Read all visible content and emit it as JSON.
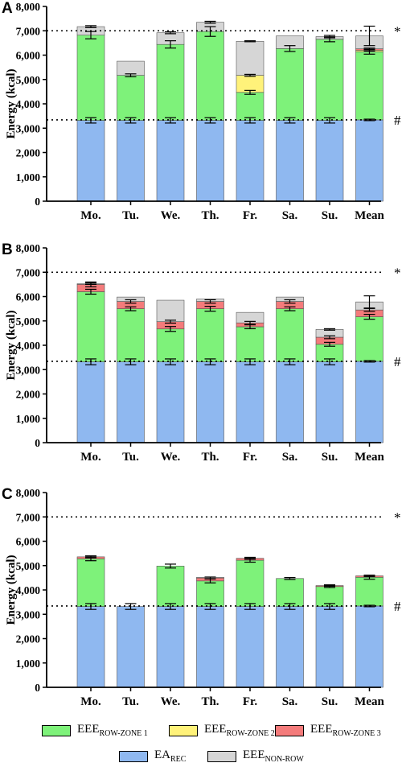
{
  "y_axis_label": "Energy (kcal)",
  "legend": [
    {
      "key": "zone1",
      "main": "EEE",
      "sub": "ROW-ZONE 1",
      "color": "#7ef27a"
    },
    {
      "key": "zone2",
      "main": "EEE",
      "sub": "ROW-ZONE 2",
      "color": "#fff27a"
    },
    {
      "key": "zone3",
      "main": "EEE",
      "sub": "ROW-ZONE 3",
      "color": "#f47b7b"
    },
    {
      "key": "ea",
      "main": "EA",
      "sub": "REC",
      "color": "#8fb8f0"
    },
    {
      "key": "nonrow",
      "main": "EEE",
      "sub": "NON-ROW",
      "color": "#d6d6d6"
    }
  ],
  "chart_data": [
    {
      "panel": "A",
      "type": "bar",
      "stacked": true,
      "categories": [
        "Mo.",
        "Tu.",
        "We.",
        "Th.",
        "Fr.",
        "Sa.",
        "Su.",
        "Mean"
      ],
      "ylim": [
        0,
        8000
      ],
      "yticks": [
        "0",
        "1,000",
        "2,000",
        "3,000",
        "4,000",
        "5,000",
        "6,000",
        "7,000",
        "8,000"
      ],
      "reference_lines": [
        {
          "value": 7000,
          "label": "*"
        },
        {
          "value": 3340,
          "label": "#"
        }
      ],
      "series": [
        {
          "name": "EA_REC",
          "key": "ea",
          "values": [
            3320,
            3320,
            3320,
            3320,
            3320,
            3320,
            3320,
            3340
          ]
        },
        {
          "name": "EEE_ROW-ZONE 1",
          "key": "zone1",
          "values": [
            3500,
            1850,
            3120,
            3650,
            1150,
            2950,
            3330,
            2800
          ]
        },
        {
          "name": "EEE_ROW-ZONE 2",
          "key": "zone2",
          "values": [
            0,
            0,
            0,
            0,
            700,
            0,
            0,
            60
          ]
        },
        {
          "name": "EEE_ROW-ZONE 3",
          "key": "zone3",
          "values": [
            0,
            0,
            0,
            0,
            0,
            0,
            0,
            60
          ]
        },
        {
          "name": "EEE_NON-ROW",
          "key": "nonrow",
          "values": [
            350,
            580,
            480,
            380,
            1400,
            520,
            110,
            530
          ]
        }
      ],
      "error_bars": {
        "ea": [
          110,
          110,
          110,
          110,
          110,
          110,
          110,
          30
        ],
        "zone1": [
          150,
          60,
          150,
          200,
          80,
          120,
          100,
          100
        ],
        "zone2": [
          0,
          0,
          0,
          0,
          40,
          0,
          0,
          30
        ],
        "zone3": [
          0,
          0,
          0,
          0,
          0,
          0,
          0,
          30
        ],
        "nonrow": [
          40,
          0,
          40,
          40,
          20,
          0,
          50,
          400
        ]
      }
    },
    {
      "panel": "B",
      "type": "bar",
      "stacked": true,
      "categories": [
        "Mo.",
        "Tu.",
        "We.",
        "Th.",
        "Fr.",
        "Sa.",
        "Su.",
        "Mean"
      ],
      "ylim": [
        0,
        8000
      ],
      "yticks": [
        "0",
        "1,000",
        "2,000",
        "3,000",
        "4,000",
        "5,000",
        "6,000",
        "7,000",
        "8,000"
      ],
      "reference_lines": [
        {
          "value": 7000,
          "label": "*"
        },
        {
          "value": 3340,
          "label": "#"
        }
      ],
      "series": [
        {
          "name": "EA_REC",
          "key": "ea",
          "values": [
            3320,
            3320,
            3320,
            3320,
            3320,
            3320,
            3320,
            3340
          ]
        },
        {
          "name": "EEE_ROW-ZONE 1",
          "key": "zone1",
          "values": [
            2880,
            2180,
            1350,
            2180,
            1440,
            2180,
            720,
            1830
          ]
        },
        {
          "name": "EEE_ROW-ZONE 2",
          "key": "zone2",
          "values": [
            0,
            0,
            0,
            0,
            0,
            0,
            0,
            0
          ]
        },
        {
          "name": "EEE_ROW-ZONE 3",
          "key": "zone3",
          "values": [
            300,
            300,
            300,
            300,
            160,
            300,
            290,
            280
          ]
        },
        {
          "name": "EEE_NON-ROW",
          "key": "nonrow",
          "values": [
            30,
            180,
            880,
            100,
            430,
            180,
            320,
            330
          ]
        }
      ],
      "error_bars": {
        "ea": [
          120,
          120,
          120,
          120,
          120,
          120,
          120,
          30
        ],
        "zone1": [
          100,
          80,
          100,
          100,
          80,
          80,
          80,
          100
        ],
        "zone2": [
          0,
          0,
          0,
          0,
          0,
          0,
          0,
          0
        ],
        "zone3": [
          100,
          70,
          60,
          70,
          60,
          70,
          60,
          60
        ],
        "nonrow": [
          30,
          0,
          0,
          0,
          0,
          0,
          30,
          250
        ]
      }
    },
    {
      "panel": "C",
      "type": "bar",
      "stacked": true,
      "categories": [
        "Mo.",
        "Tu.",
        "We.",
        "Th.",
        "Fr.",
        "Sa.",
        "Su.",
        "Mean"
      ],
      "ylim": [
        0,
        8000
      ],
      "yticks": [
        "0",
        "1,000",
        "2,000",
        "3,000",
        "4,000",
        "5,000",
        "6,000",
        "7,000",
        "8,000"
      ],
      "reference_lines": [
        {
          "value": 7000,
          "label": "*"
        },
        {
          "value": 3340,
          "label": "#"
        }
      ],
      "series": [
        {
          "name": "EA_REC",
          "key": "ea",
          "values": [
            3320,
            3320,
            3320,
            3320,
            3320,
            3320,
            3320,
            3340
          ]
        },
        {
          "name": "EEE_ROW-ZONE 1",
          "key": "zone1",
          "values": [
            1960,
            0,
            1660,
            1050,
            1900,
            1150,
            820,
            1180
          ]
        },
        {
          "name": "EEE_ROW-ZONE 2",
          "key": "zone2",
          "values": [
            0,
            0,
            0,
            0,
            0,
            0,
            0,
            0
          ]
        },
        {
          "name": "EEE_ROW-ZONE 3",
          "key": "zone3",
          "values": [
            80,
            0,
            0,
            120,
            80,
            0,
            40,
            60
          ]
        },
        {
          "name": "EEE_NON-ROW",
          "key": "nonrow",
          "values": [
            0,
            0,
            0,
            30,
            0,
            0,
            0,
            0
          ]
        }
      ],
      "error_bars": {
        "ea": [
          120,
          120,
          120,
          120,
          120,
          120,
          120,
          30
        ],
        "zone1": [
          80,
          0,
          80,
          80,
          80,
          40,
          40,
          80
        ],
        "zone2": [
          0,
          0,
          0,
          0,
          0,
          0,
          0,
          0
        ],
        "zone3": [
          40,
          0,
          0,
          40,
          40,
          0,
          30,
          30
        ],
        "nonrow": [
          0,
          0,
          0,
          0,
          0,
          0,
          0,
          0
        ]
      }
    }
  ]
}
